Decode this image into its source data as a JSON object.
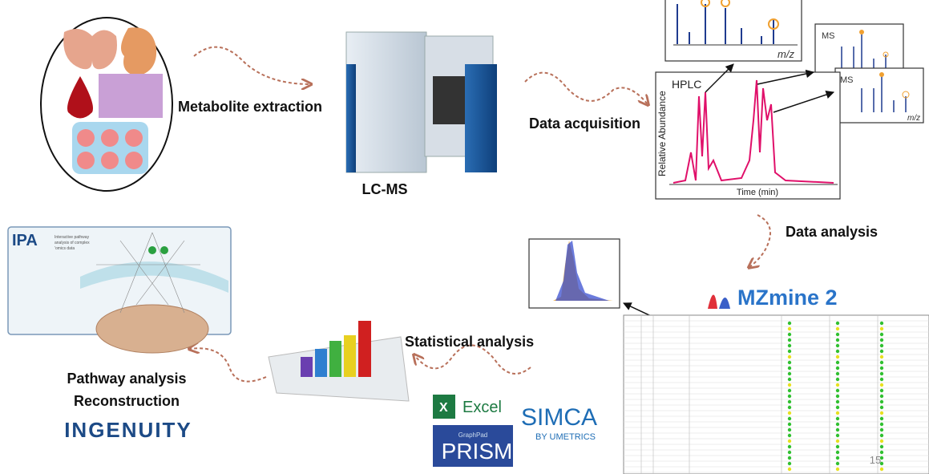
{
  "steps": {
    "extraction": "Metabolite extraction",
    "instrument": "LC-MS",
    "acquisition": "Data acquisition",
    "analysis": "Data analysis",
    "statistics": "Statistical analysis",
    "pathway": [
      "Pathway analysis",
      "Reconstruction"
    ]
  },
  "chromatogram": {
    "label": "HPLC",
    "y_axis": "Relative Abundance",
    "x_axis": "Time (min)"
  },
  "spectra": [
    {
      "x_axis": "m/z"
    },
    {
      "label": "MS"
    },
    {
      "label": "MS",
      "x_axis": "m/z"
    }
  ],
  "software": {
    "mzmine": "MZmine 2",
    "ipa": {
      "name": "IPA",
      "tagline": [
        "Interactive pathway",
        "analysis of complex",
        "'omics data"
      ]
    },
    "ingenuity": "INGENUITY",
    "excel": "Excel",
    "simca": {
      "name": "SIMCA",
      "by": "BY UMETRICS"
    },
    "prism": {
      "name": "PRISM",
      "vendor": "GraphPad"
    }
  },
  "page_number": "15"
}
